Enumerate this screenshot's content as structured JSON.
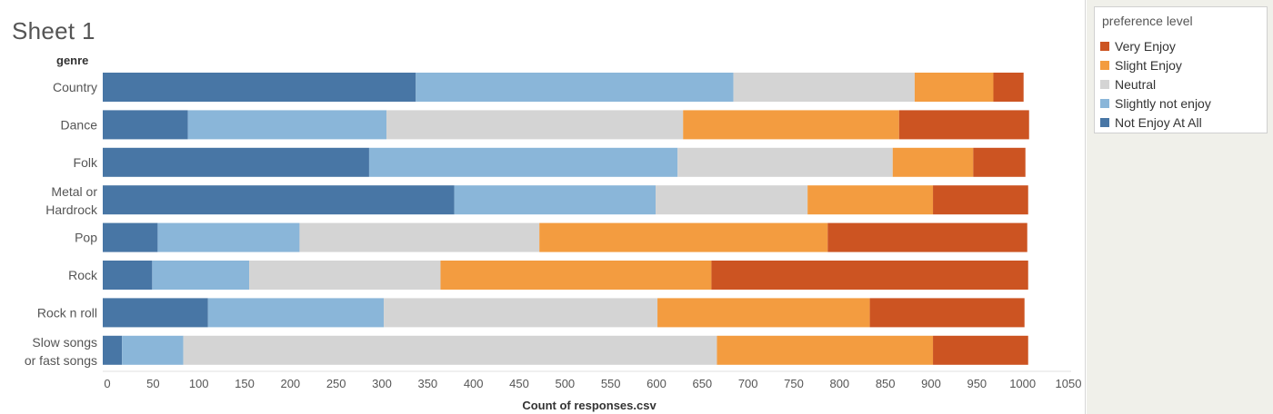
{
  "sheet": {
    "title": "Sheet 1"
  },
  "legend": {
    "title": "preference level",
    "items": [
      {
        "label": "Very Enjoy",
        "color": "#cc5422"
      },
      {
        "label": "Slight Enjoy",
        "color": "#f39c40"
      },
      {
        "label": "Neutral",
        "color": "#d4d4d4"
      },
      {
        "label": "Slightly not enjoy",
        "color": "#8ab6d9"
      },
      {
        "label": "Not Enjoy At All",
        "color": "#4876a5"
      }
    ]
  },
  "chart_data": {
    "type": "bar",
    "orientation": "horizontal",
    "stacked": true,
    "title": "Sheet 1",
    "ylabel": "genre",
    "xlabel": "Count of responses.csv",
    "xlim": [
      0,
      1050
    ],
    "xticks": [
      0,
      50,
      100,
      150,
      200,
      250,
      300,
      350,
      400,
      450,
      500,
      550,
      600,
      650,
      700,
      750,
      800,
      850,
      900,
      950,
      1000,
      1050
    ],
    "categories": [
      [
        "Country"
      ],
      [
        "Dance"
      ],
      [
        "Folk"
      ],
      [
        "Metal or",
        "Hardrock"
      ],
      [
        "Pop"
      ],
      [
        "Rock"
      ],
      [
        "Rock n roll"
      ],
      [
        "Slow songs",
        "or fast songs"
      ]
    ],
    "series": [
      {
        "name": "Not Enjoy At All",
        "color": "#4876a5",
        "values": [
          342,
          93,
          291,
          384,
          60,
          54,
          115,
          21
        ]
      },
      {
        "name": "Slightly not enjoy",
        "color": "#8ab6d9",
        "values": [
          347,
          217,
          337,
          220,
          155,
          106,
          192,
          67
        ]
      },
      {
        "name": "Neutral",
        "color": "#d4d4d4",
        "values": [
          198,
          324,
          235,
          166,
          262,
          209,
          299,
          583
        ]
      },
      {
        "name": "Slight Enjoy",
        "color": "#f39c40",
        "values": [
          86,
          236,
          88,
          137,
          315,
          296,
          232,
          236
        ]
      },
      {
        "name": "Very Enjoy",
        "color": "#cc5422",
        "values": [
          33,
          142,
          57,
          104,
          218,
          346,
          169,
          104
        ]
      }
    ],
    "grid": false,
    "legend_position": "right"
  }
}
